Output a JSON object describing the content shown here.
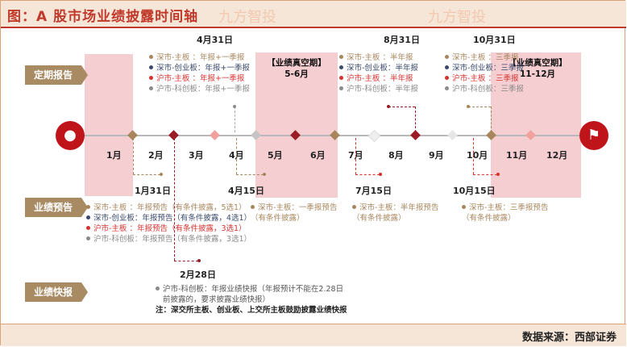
{
  "title": "图：A 股市场业绩披露时间轴",
  "watermark": "九方智投",
  "categories": {
    "periodic": "定期报告",
    "forecast": "业绩预告",
    "express": "业绩快报"
  },
  "months": [
    "1月",
    "2月",
    "3月",
    "4月",
    "5月",
    "6月",
    "7月",
    "8月",
    "9月",
    "10月",
    "11月",
    "12月"
  ],
  "quiet_periods": [
    {
      "label": "【业绩真空期】",
      "range": "5-6月"
    },
    {
      "label": "【业绩真空期】",
      "range": "11-12月"
    }
  ],
  "dates": {
    "d0431": "4月31日",
    "d0831": "8月31日",
    "d1031": "10月31日",
    "d0131": "1月31日",
    "d0415": "4月15日",
    "d0715": "7月15日",
    "d1015": "10月15日",
    "d0228": "2月28日"
  },
  "periodic": {
    "annual": [
      {
        "text": "深市-主板 ：年报+一季报",
        "color": "tan"
      },
      {
        "text": "深市-创业板：年报+一季报",
        "color": "blue"
      },
      {
        "text": "沪市-主板 ：年报+一季报",
        "color": "red"
      },
      {
        "text": "沪市-科创板：年报+一季报",
        "color": "gray"
      }
    ],
    "half": [
      {
        "text": "深市-主板 ：半年报",
        "color": "tan"
      },
      {
        "text": "深市-创业板：半年报",
        "color": "blue"
      },
      {
        "text": "沪市-主板 ：半年报",
        "color": "red"
      },
      {
        "text": "沪市-科创板：半年报",
        "color": "gray"
      }
    ],
    "q3": [
      {
        "text": "深市-主板 ：三季报",
        "color": "tan"
      },
      {
        "text": "深市-创业板：三季报",
        "color": "blue"
      },
      {
        "text": "沪市-主板 ：三季报",
        "color": "red"
      },
      {
        "text": "沪市-科创板：三季报",
        "color": "gray"
      }
    ]
  },
  "forecast": {
    "annual": [
      {
        "text": "深市-主板 ：年报预告（有条件披露，5选1）",
        "color": "tan"
      },
      {
        "text": "深市-创业板：年报预告（有条件披露，4选1）",
        "color": "blue"
      },
      {
        "text": "沪市-主板 ：年报预告（有条件披露，3选1）",
        "color": "red"
      },
      {
        "text": "沪市-科创板：年报预告（有条件披露，3选1）",
        "color": "gray"
      }
    ],
    "q1": {
      "line1": "深市-主板：一季报预告",
      "line2": "（有条件披露）"
    },
    "half": {
      "line1": "深市-主板：半年报预告",
      "line2": "（有条件披露）"
    },
    "q3": {
      "line1": "深市-主板：三季报预告",
      "line2": "（有条件披露）"
    }
  },
  "express": {
    "line1": "沪市-科创板：年报业绩快报（年报预计不能在2.28日",
    "line2": "前披露的，要求披露业绩快报）",
    "note": "注：深交所主板、创业板、上交所主板鼓励披露业绩快报"
  },
  "source": "数据来源：西部证券",
  "colors": {
    "tan": "#a8865d",
    "blue": "#3a4a6b",
    "red": "#d8322f",
    "gray": "#8a8a8a",
    "accent": "#c0141b"
  }
}
